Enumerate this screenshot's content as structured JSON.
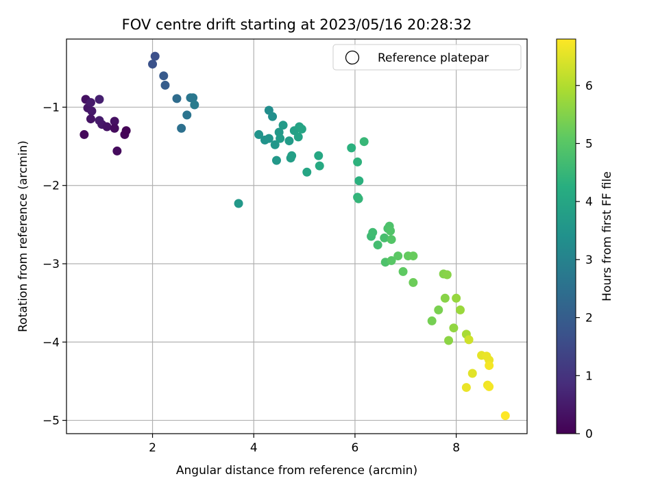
{
  "chart_data": {
    "type": "scatter",
    "title": "FOV centre drift starting at 2023/05/16 20:28:32",
    "xlabel": "Angular distance from reference (arcmin)",
    "ylabel": "Rotation from reference (arcmin)",
    "xlim": [
      0.3,
      9.4
    ],
    "ylim": [
      -5.17,
      -0.13
    ],
    "xticks": [
      2,
      4,
      6,
      8
    ],
    "yticks": [
      -1,
      -2,
      -3,
      -4,
      -5
    ],
    "grid": true,
    "legend": {
      "position": "top-right",
      "entries": [
        "Reference platepar"
      ]
    },
    "colorbar": {
      "label": "Hours from first FF file",
      "range": [
        0,
        6.8
      ],
      "ticks": [
        0,
        1,
        2,
        3,
        4,
        5,
        6
      ],
      "colormap": "viridis"
    },
    "points": [
      {
        "x": 0.65,
        "y": -1.35,
        "c": 0.15
      },
      {
        "x": 0.68,
        "y": -0.9,
        "c": 0.3
      },
      {
        "x": 0.72,
        "y": -1.01,
        "c": 0.4
      },
      {
        "x": 0.78,
        "y": -0.94,
        "c": 0.5
      },
      {
        "x": 0.8,
        "y": -1.05,
        "c": 0.45
      },
      {
        "x": 0.78,
        "y": -1.15,
        "c": 0.35
      },
      {
        "x": 0.95,
        "y": -0.9,
        "c": 0.6
      },
      {
        "x": 0.95,
        "y": -1.17,
        "c": 0.5
      },
      {
        "x": 1.0,
        "y": -1.22,
        "c": 0.45
      },
      {
        "x": 1.1,
        "y": -1.25,
        "c": 0.35
      },
      {
        "x": 1.25,
        "y": -1.18,
        "c": 0.3
      },
      {
        "x": 1.25,
        "y": -1.27,
        "c": 0.2
      },
      {
        "x": 1.3,
        "y": -1.56,
        "c": 0.2
      },
      {
        "x": 1.45,
        "y": -1.35,
        "c": 0.1
      },
      {
        "x": 1.48,
        "y": -1.3,
        "c": 0.05
      },
      {
        "x": 2.0,
        "y": -0.45,
        "c": 1.7
      },
      {
        "x": 2.05,
        "y": -0.35,
        "c": 1.65
      },
      {
        "x": 2.22,
        "y": -0.6,
        "c": 1.9
      },
      {
        "x": 2.25,
        "y": -0.72,
        "c": 2.0
      },
      {
        "x": 2.48,
        "y": -0.89,
        "c": 2.4
      },
      {
        "x": 2.57,
        "y": -1.27,
        "c": 2.5
      },
      {
        "x": 2.68,
        "y": -1.1,
        "c": 2.6
      },
      {
        "x": 2.75,
        "y": -0.88,
        "c": 2.65
      },
      {
        "x": 2.8,
        "y": -0.88,
        "c": 2.7
      },
      {
        "x": 2.83,
        "y": -0.97,
        "c": 2.8
      },
      {
        "x": 3.7,
        "y": -2.23,
        "c": 3.6
      },
      {
        "x": 4.1,
        "y": -1.35,
        "c": 3.5
      },
      {
        "x": 4.22,
        "y": -1.42,
        "c": 3.45
      },
      {
        "x": 4.3,
        "y": -1.4,
        "c": 3.5
      },
      {
        "x": 4.3,
        "y": -1.04,
        "c": 3.3
      },
      {
        "x": 4.37,
        "y": -1.12,
        "c": 3.35
      },
      {
        "x": 4.42,
        "y": -1.48,
        "c": 3.55
      },
      {
        "x": 4.45,
        "y": -1.68,
        "c": 3.6
      },
      {
        "x": 4.5,
        "y": -1.32,
        "c": 3.6
      },
      {
        "x": 4.52,
        "y": -1.4,
        "c": 3.7
      },
      {
        "x": 4.58,
        "y": -1.23,
        "c": 3.65
      },
      {
        "x": 4.7,
        "y": -1.43,
        "c": 3.7
      },
      {
        "x": 4.73,
        "y": -1.65,
        "c": 3.75
      },
      {
        "x": 4.75,
        "y": -1.62,
        "c": 3.8
      },
      {
        "x": 4.8,
        "y": -1.3,
        "c": 3.85
      },
      {
        "x": 4.88,
        "y": -1.38,
        "c": 3.9
      },
      {
        "x": 4.9,
        "y": -1.25,
        "c": 3.9
      },
      {
        "x": 4.95,
        "y": -1.28,
        "c": 3.95
      },
      {
        "x": 5.05,
        "y": -1.83,
        "c": 4.0
      },
      {
        "x": 5.28,
        "y": -1.62,
        "c": 4.05
      },
      {
        "x": 5.3,
        "y": -1.75,
        "c": 4.1
      },
      {
        "x": 5.93,
        "y": -1.52,
        "c": 4.3
      },
      {
        "x": 6.05,
        "y": -1.7,
        "c": 4.35
      },
      {
        "x": 6.05,
        "y": -2.15,
        "c": 4.4
      },
      {
        "x": 6.08,
        "y": -1.94,
        "c": 4.3
      },
      {
        "x": 6.07,
        "y": -2.17,
        "c": 4.45
      },
      {
        "x": 6.18,
        "y": -1.44,
        "c": 4.5
      },
      {
        "x": 6.32,
        "y": -2.65,
        "c": 4.6
      },
      {
        "x": 6.35,
        "y": -2.6,
        "c": 4.65
      },
      {
        "x": 6.45,
        "y": -2.76,
        "c": 4.7
      },
      {
        "x": 6.58,
        "y": -2.67,
        "c": 4.75
      },
      {
        "x": 6.6,
        "y": -2.98,
        "c": 4.85
      },
      {
        "x": 6.65,
        "y": -2.55,
        "c": 4.8
      },
      {
        "x": 6.68,
        "y": -2.52,
        "c": 4.85
      },
      {
        "x": 6.7,
        "y": -2.58,
        "c": 4.9
      },
      {
        "x": 6.72,
        "y": -2.96,
        "c": 5.0
      },
      {
        "x": 6.72,
        "y": -2.69,
        "c": 4.95
      },
      {
        "x": 6.85,
        "y": -2.9,
        "c": 5.05
      },
      {
        "x": 6.95,
        "y": -3.1,
        "c": 5.1
      },
      {
        "x": 7.05,
        "y": -2.9,
        "c": 5.15
      },
      {
        "x": 7.15,
        "y": -2.9,
        "c": 5.2
      },
      {
        "x": 7.15,
        "y": -3.24,
        "c": 5.25
      },
      {
        "x": 7.52,
        "y": -3.73,
        "c": 5.35
      },
      {
        "x": 7.65,
        "y": -3.59,
        "c": 5.4
      },
      {
        "x": 7.75,
        "y": -3.13,
        "c": 5.5
      },
      {
        "x": 7.78,
        "y": -3.44,
        "c": 5.55
      },
      {
        "x": 7.82,
        "y": -3.14,
        "c": 5.55
      },
      {
        "x": 7.85,
        "y": -3.98,
        "c": 5.6
      },
      {
        "x": 7.95,
        "y": -3.82,
        "c": 5.65
      },
      {
        "x": 8.0,
        "y": -3.44,
        "c": 5.7
      },
      {
        "x": 8.08,
        "y": -3.59,
        "c": 5.75
      },
      {
        "x": 8.2,
        "y": -3.9,
        "c": 5.9
      },
      {
        "x": 8.25,
        "y": -3.97,
        "c": 6.3
      },
      {
        "x": 8.2,
        "y": -4.58,
        "c": 6.6
      },
      {
        "x": 8.32,
        "y": -4.4,
        "c": 6.5
      },
      {
        "x": 8.5,
        "y": -4.17,
        "c": 6.55
      },
      {
        "x": 8.6,
        "y": -4.18,
        "c": 6.6
      },
      {
        "x": 8.62,
        "y": -4.55,
        "c": 6.65
      },
      {
        "x": 8.65,
        "y": -4.23,
        "c": 6.6
      },
      {
        "x": 8.65,
        "y": -4.3,
        "c": 6.7
      },
      {
        "x": 8.65,
        "y": -4.57,
        "c": 6.7
      },
      {
        "x": 8.97,
        "y": -4.94,
        "c": 6.8
      }
    ]
  }
}
